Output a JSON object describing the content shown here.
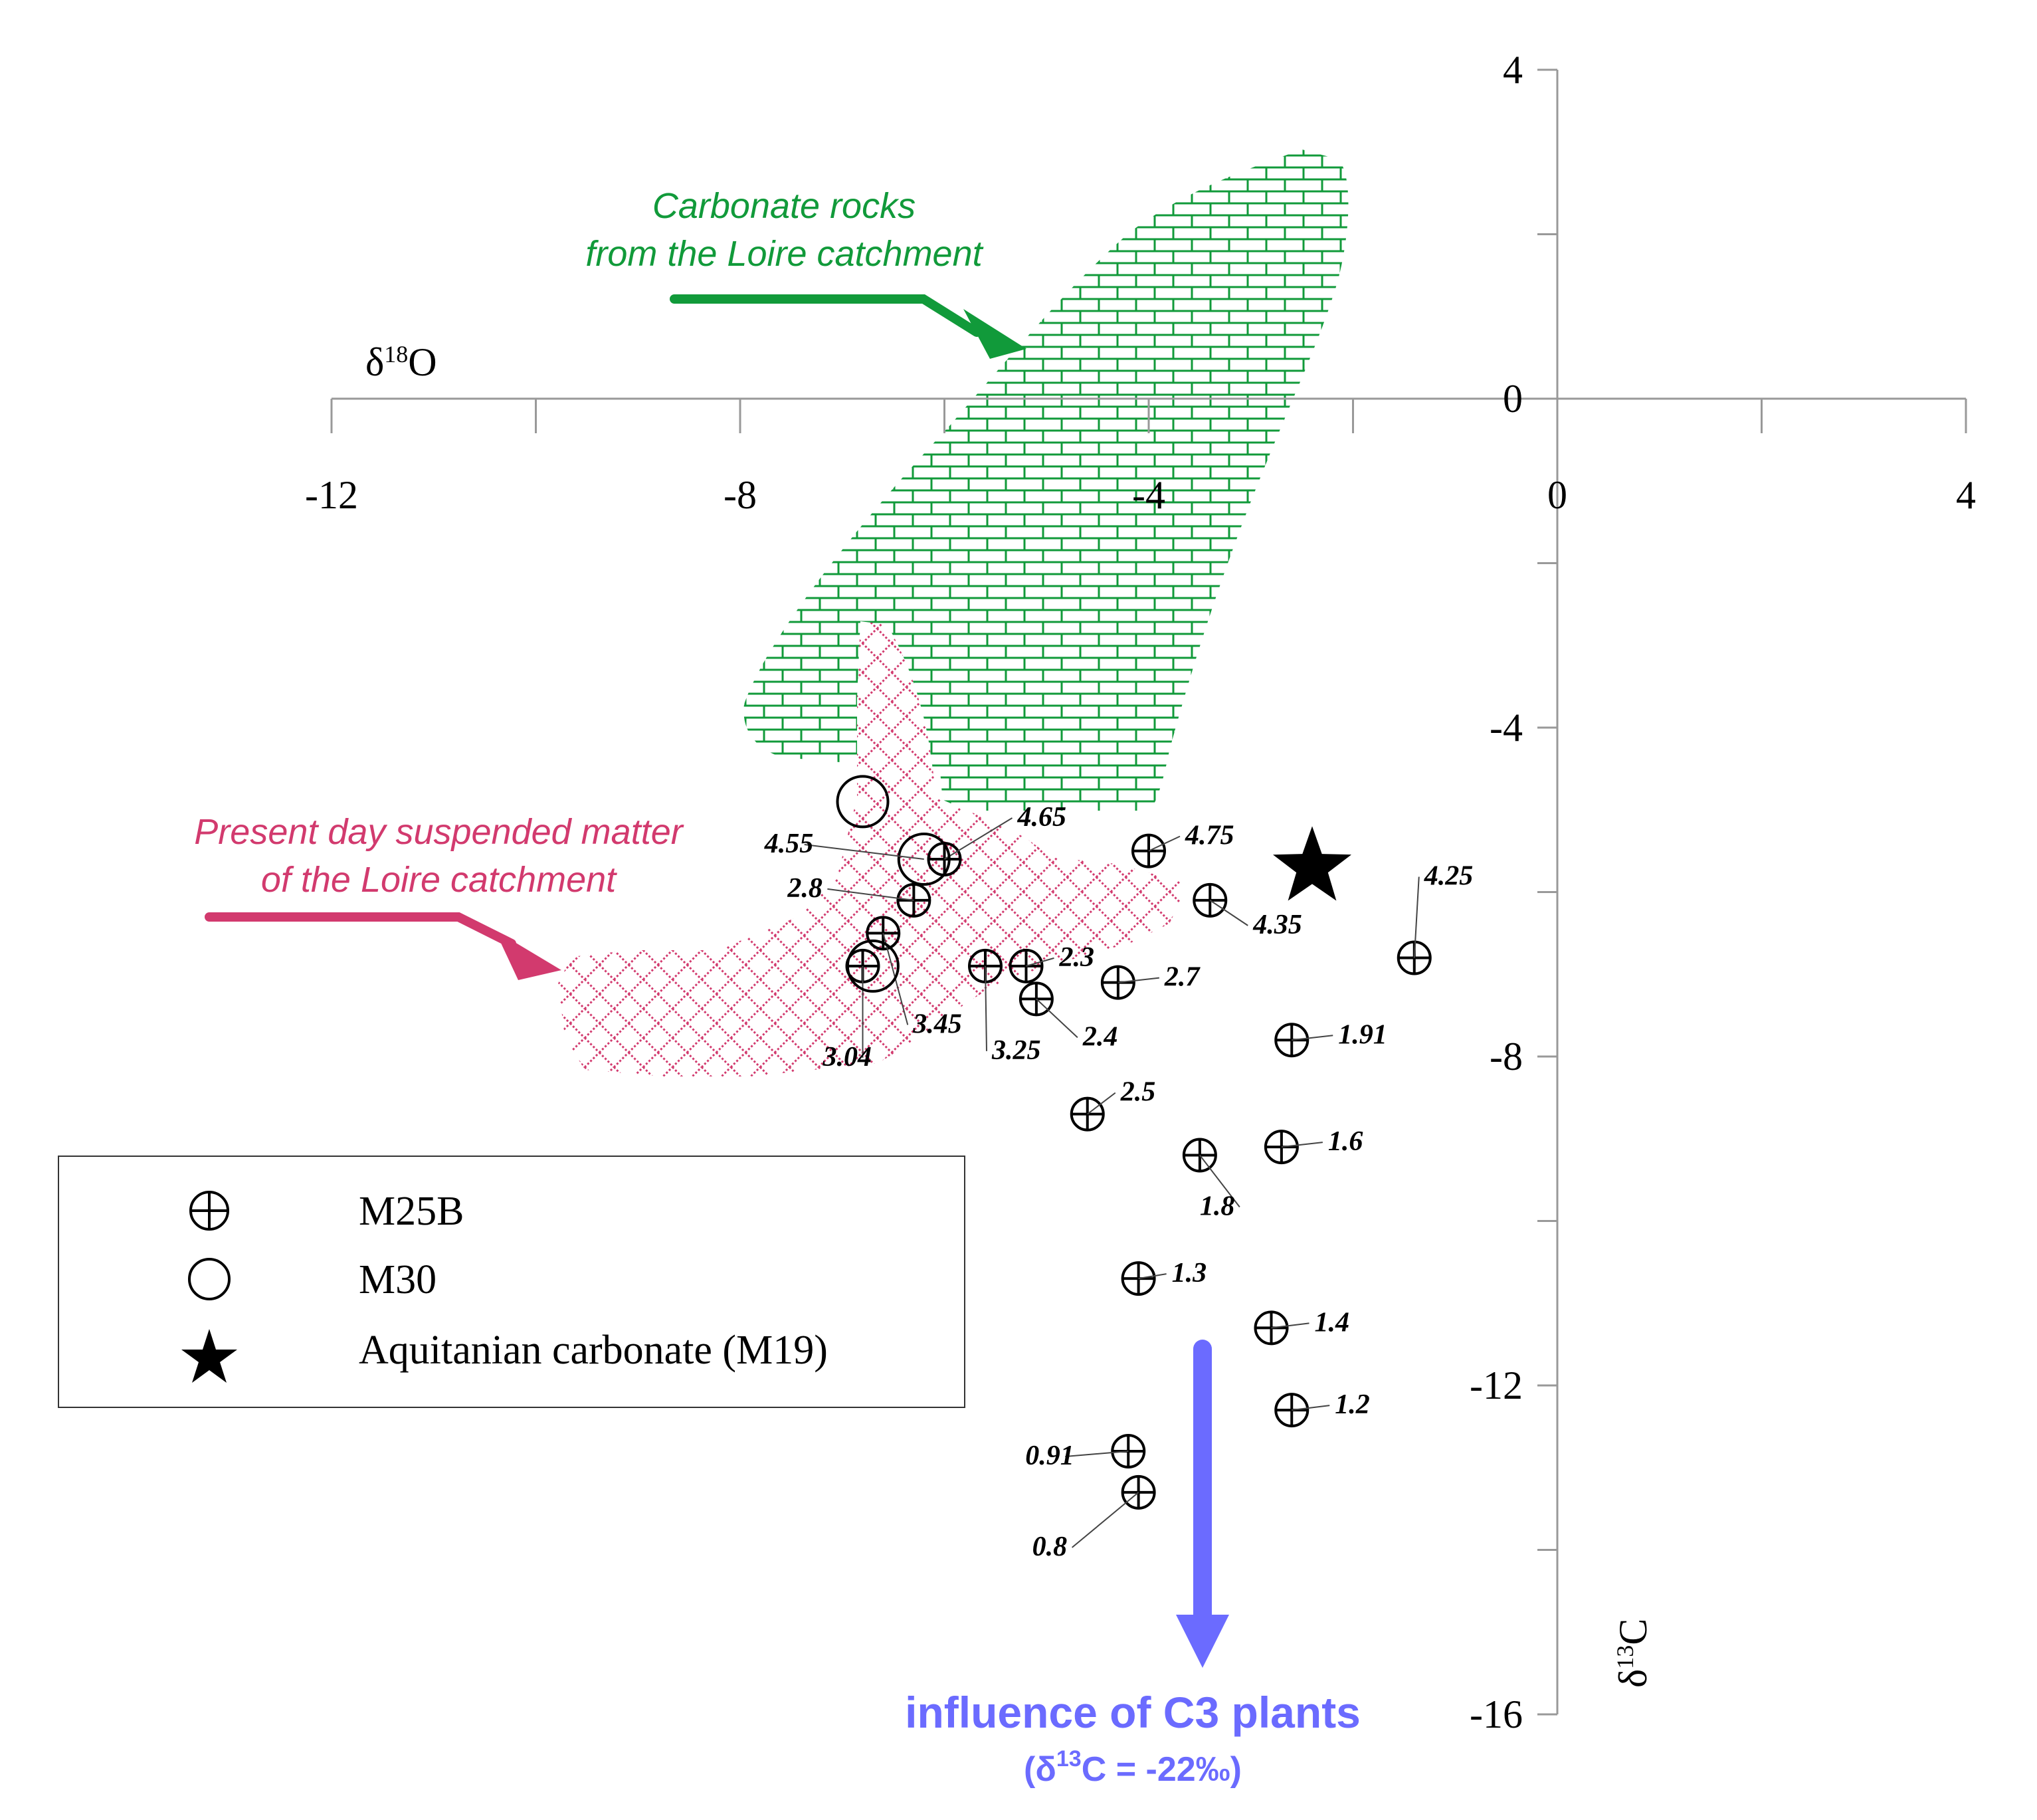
{
  "chart_data": {
    "type": "scatter",
    "x_axis": {
      "label_main": "δ",
      "label_sup": "18",
      "label_tail": "O",
      "range": [
        -12,
        4
      ],
      "ticks": [
        -12,
        -8,
        -4,
        0,
        4
      ]
    },
    "y_axis": {
      "label_main": "δ",
      "label_sup": "13",
      "label_tail": "C",
      "range": [
        -16,
        4
      ],
      "ticks": [
        4,
        0,
        -4,
        -8,
        -12,
        -16
      ]
    },
    "series": [
      {
        "name": "M25B",
        "marker": "circle-plus",
        "points": [
          {
            "x": -4.0,
            "y": -5.5,
            "label": "4.75"
          },
          {
            "x": -3.4,
            "y": -6.1,
            "label": "4.35"
          },
          {
            "x": -1.4,
            "y": -6.8,
            "label": "4.25"
          },
          {
            "x": -6.0,
            "y": -5.6,
            "label": "4.65"
          },
          {
            "x": -6.3,
            "y": -6.1,
            "label": "2.8"
          },
          {
            "x": -6.6,
            "y": -6.5,
            "label": "3.45"
          },
          {
            "x": -6.8,
            "y": -6.9,
            "label": "3.04"
          },
          {
            "x": -5.6,
            "y": -6.9,
            "label": "3.25"
          },
          {
            "x": -5.2,
            "y": -6.9,
            "label": "2.3"
          },
          {
            "x": -5.1,
            "y": -7.3,
            "label": "2.4"
          },
          {
            "x": -4.3,
            "y": -7.1,
            "label": "2.7"
          },
          {
            "x": -2.6,
            "y": -7.8,
            "label": "1.91"
          },
          {
            "x": -4.6,
            "y": -8.7,
            "label": "2.5"
          },
          {
            "x": -2.7,
            "y": -9.1,
            "label": "1.6"
          },
          {
            "x": -3.5,
            "y": -9.2,
            "label": "1.8"
          },
          {
            "x": -4.1,
            "y": -10.7,
            "label": "1.3"
          },
          {
            "x": -2.8,
            "y": -11.3,
            "label": "1.4"
          },
          {
            "x": -2.6,
            "y": -12.3,
            "label": "1.2"
          },
          {
            "x": -4.2,
            "y": -12.8,
            "label": "0.91"
          },
          {
            "x": -4.1,
            "y": -13.3,
            "label": "0.8"
          }
        ]
      },
      {
        "name": "M30",
        "marker": "circle",
        "points": [
          {
            "x": -6.8,
            "y": -4.9,
            "label": ""
          },
          {
            "x": -6.2,
            "y": -5.6,
            "label": "4.55"
          },
          {
            "x": -6.7,
            "y": -6.9,
            "label": ""
          }
        ]
      },
      {
        "name": "Aquitanian carbonate (M19)",
        "marker": "star",
        "points": [
          {
            "x": -2.4,
            "y": -5.7,
            "label": ""
          }
        ]
      }
    ],
    "regions": [
      {
        "name": "Carbonate rocks from the Loire catchment",
        "color": "#119a3a"
      },
      {
        "name": "Present day suspended matter of the Loire catchment",
        "color": "#d23a6e"
      }
    ],
    "annotations": {
      "carbonate_label_line1": "Carbonate rocks",
      "carbonate_label_line2": "from the Loire catchment",
      "suspended_label_line1": "Present day suspended matter",
      "suspended_label_line2": "of the Loire catchment",
      "c3_title": "influence of C3 plants",
      "c3_sub_prefix": "(δ",
      "c3_sub_sup": "13",
      "c3_sub_suffix": "C = -22‰)"
    },
    "legend": [
      {
        "label": "M25B",
        "marker": "circle-plus"
      },
      {
        "label": "M30",
        "marker": "circle"
      },
      {
        "label": "Aquitanian carbonate (M19)",
        "marker": "star"
      }
    ],
    "colors": {
      "green": "#119a3a",
      "pink": "#d23a6e",
      "blue": "#6b6bff"
    }
  }
}
